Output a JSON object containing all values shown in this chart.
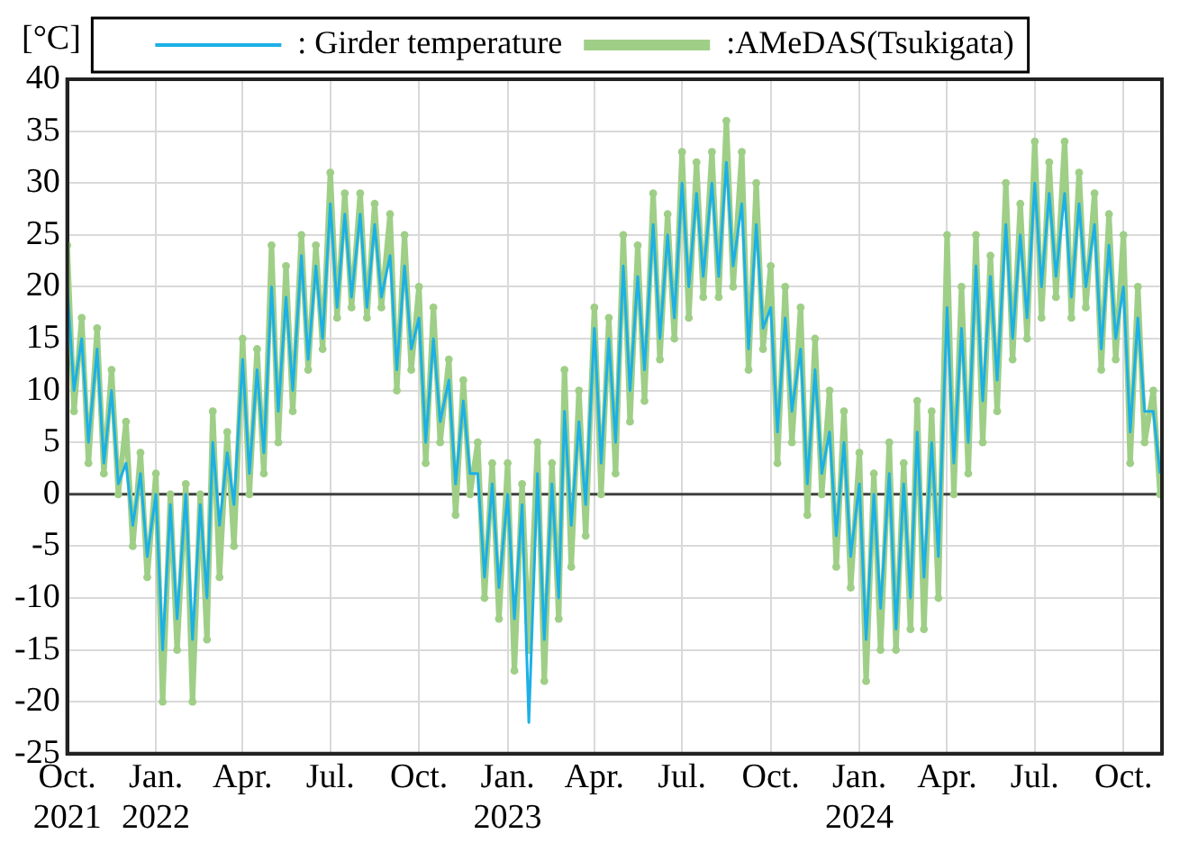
{
  "chart_data": {
    "type": "line",
    "ylabel": "[°C]",
    "legend": "top",
    "grid": true,
    "xlim": [
      "2021-10-01",
      "2024-11-10"
    ],
    "xticks": [
      {
        "value": "2021-10",
        "label": "Oct.\n2021"
      },
      {
        "value": "2022-01",
        "label": "Jan.\n2022"
      },
      {
        "value": "2022-04",
        "label": "Apr."
      },
      {
        "value": "2022-07",
        "label": "Jul."
      },
      {
        "value": "2022-10",
        "label": "Oct."
      },
      {
        "value": "2023-01",
        "label": "Jan.\n2023"
      },
      {
        "value": "2023-04",
        "label": "Apr."
      },
      {
        "value": "2023-07",
        "label": "Jul."
      },
      {
        "value": "2023-10",
        "label": "Oct."
      },
      {
        "value": "2024-01",
        "label": "Jan.\n2024"
      },
      {
        "value": "2024-04",
        "label": "Apr."
      },
      {
        "value": "2024-07",
        "label": "Jul."
      },
      {
        "value": "2024-10",
        "label": "Oct."
      }
    ],
    "ylim": [
      -25,
      40
    ],
    "yticks": [
      -25,
      -20,
      -15,
      -10,
      -5,
      0,
      5,
      10,
      15,
      20,
      25,
      30,
      35,
      40
    ],
    "ref_lines": [
      {
        "axis": "y",
        "value": 0,
        "color": "#404040"
      }
    ],
    "x": [
      "2021-10-01",
      "2021-10-08",
      "2021-10-16",
      "2021-10-23",
      "2021-11-01",
      "2021-11-08",
      "2021-11-16",
      "2021-11-23",
      "2021-12-01",
      "2021-12-08",
      "2021-12-16",
      "2021-12-23",
      "2022-01-01",
      "2022-01-08",
      "2022-01-16",
      "2022-01-23",
      "2022-02-01",
      "2022-02-08",
      "2022-02-16",
      "2022-02-23",
      "2022-03-01",
      "2022-03-08",
      "2022-03-16",
      "2022-03-23",
      "2022-04-01",
      "2022-04-08",
      "2022-04-16",
      "2022-04-23",
      "2022-05-01",
      "2022-05-08",
      "2022-05-16",
      "2022-05-23",
      "2022-06-01",
      "2022-06-08",
      "2022-06-16",
      "2022-06-23",
      "2022-07-01",
      "2022-07-08",
      "2022-07-16",
      "2022-07-23",
      "2022-08-01",
      "2022-08-08",
      "2022-08-16",
      "2022-08-23",
      "2022-09-01",
      "2022-09-08",
      "2022-09-16",
      "2022-09-23",
      "2022-10-01",
      "2022-10-08",
      "2022-10-16",
      "2022-10-23",
      "2022-11-01",
      "2022-11-08",
      "2022-11-16",
      "2022-11-23",
      "2022-12-01",
      "2022-12-08",
      "2022-12-16",
      "2022-12-23",
      "2023-01-01",
      "2023-01-08",
      "2023-01-16",
      "2023-01-23",
      "2023-02-01",
      "2023-02-08",
      "2023-02-16",
      "2023-02-23",
      "2023-03-01",
      "2023-03-08",
      "2023-03-16",
      "2023-03-23",
      "2023-04-01",
      "2023-04-08",
      "2023-04-16",
      "2023-04-23",
      "2023-05-01",
      "2023-05-08",
      "2023-05-16",
      "2023-05-23",
      "2023-06-01",
      "2023-06-08",
      "2023-06-16",
      "2023-06-23",
      "2023-07-01",
      "2023-07-08",
      "2023-07-16",
      "2023-07-23",
      "2023-08-01",
      "2023-08-08",
      "2023-08-16",
      "2023-08-23",
      "2023-09-01",
      "2023-09-08",
      "2023-09-16",
      "2023-09-23",
      "2023-10-01",
      "2023-10-08",
      "2023-10-16",
      "2023-10-23",
      "2023-11-01",
      "2023-11-08",
      "2023-11-16",
      "2023-11-23",
      "2023-12-01",
      "2023-12-08",
      "2023-12-16",
      "2023-12-23",
      "2024-01-01",
      "2024-01-08",
      "2024-01-16",
      "2024-01-23",
      "2024-02-01",
      "2024-02-08",
      "2024-02-16",
      "2024-02-23",
      "2024-03-01",
      "2024-03-08",
      "2024-03-16",
      "2024-03-23",
      "2024-04-01",
      "2024-04-08",
      "2024-04-16",
      "2024-04-23",
      "2024-05-01",
      "2024-05-08",
      "2024-05-16",
      "2024-05-23",
      "2024-06-01",
      "2024-06-08",
      "2024-06-16",
      "2024-06-23",
      "2024-07-01",
      "2024-07-08",
      "2024-07-16",
      "2024-07-23",
      "2024-08-01",
      "2024-08-08",
      "2024-08-16",
      "2024-08-23",
      "2024-09-01",
      "2024-09-08",
      "2024-09-16",
      "2024-09-23",
      "2024-10-01",
      "2024-10-08",
      "2024-10-16",
      "2024-10-23",
      "2024-11-01",
      "2024-11-08"
    ],
    "series": [
      {
        "name": ": Girder temperature",
        "color": "#1cb0e6",
        "marker": "none",
        "values": [
          20,
          10,
          15,
          5,
          14,
          3,
          10,
          1,
          3,
          -3,
          2,
          -6,
          0,
          -15,
          -1,
          -12,
          0,
          -14,
          -1,
          -10,
          5,
          -3,
          4,
          -1,
          13,
          2,
          12,
          4,
          20,
          8,
          19,
          10,
          23,
          13,
          22,
          15,
          28,
          18,
          27,
          19,
          27,
          18,
          26,
          19,
          23,
          12,
          22,
          14,
          17,
          5,
          15,
          7,
          11,
          1,
          9,
          2,
          2,
          -8,
          1,
          -9,
          0,
          -12,
          -1,
          -22,
          2,
          -14,
          1,
          -10,
          8,
          -3,
          7,
          -1,
          16,
          3,
          15,
          5,
          22,
          10,
          21,
          12,
          26,
          15,
          25,
          17,
          30,
          20,
          29,
          21,
          30,
          21,
          32,
          22,
          28,
          14,
          26,
          16,
          18,
          6,
          17,
          8,
          14,
          1,
          12,
          2,
          6,
          -4,
          5,
          -6,
          1,
          -14,
          0,
          -11,
          2,
          -13,
          1,
          -10,
          6,
          -8,
          5,
          -6,
          18,
          3,
          16,
          5,
          22,
          9,
          21,
          11,
          26,
          15,
          25,
          17,
          30,
          20,
          29,
          21,
          29,
          19,
          28,
          20,
          26,
          14,
          24,
          15,
          20,
          6,
          17,
          8,
          8,
          2
        ]
      },
      {
        "name": ":AMeDAS(Tsukigata)",
        "color": "#9fcf87",
        "marker": "circle",
        "values": [
          24,
          8,
          17,
          3,
          16,
          2,
          12,
          0,
          7,
          -5,
          4,
          -8,
          2,
          -20,
          0,
          -15,
          1,
          -20,
          0,
          -14,
          8,
          -8,
          6,
          -5,
          15,
          0,
          14,
          2,
          24,
          5,
          22,
          8,
          25,
          12,
          24,
          14,
          31,
          17,
          29,
          18,
          29,
          17,
          28,
          18,
          27,
          10,
          25,
          12,
          20,
          3,
          18,
          5,
          13,
          -2,
          11,
          0,
          5,
          -10,
          3,
          -12,
          3,
          -17,
          1,
          -15,
          5,
          -18,
          3,
          -12,
          12,
          -7,
          10,
          -4,
          18,
          0,
          17,
          2,
          25,
          7,
          24,
          9,
          29,
          13,
          27,
          15,
          33,
          17,
          32,
          19,
          33,
          19,
          36,
          20,
          33,
          12,
          30,
          14,
          22,
          3,
          20,
          5,
          18,
          -2,
          15,
          0,
          10,
          -7,
          8,
          -9,
          4,
          -18,
          2,
          -15,
          5,
          -15,
          3,
          -13,
          9,
          -13,
          8,
          -10,
          25,
          0,
          20,
          2,
          25,
          5,
          23,
          8,
          30,
          13,
          28,
          15,
          34,
          17,
          32,
          19,
          34,
          17,
          31,
          18,
          29,
          12,
          27,
          13,
          25,
          3,
          20,
          5,
          10,
          0
        ]
      }
    ]
  }
}
